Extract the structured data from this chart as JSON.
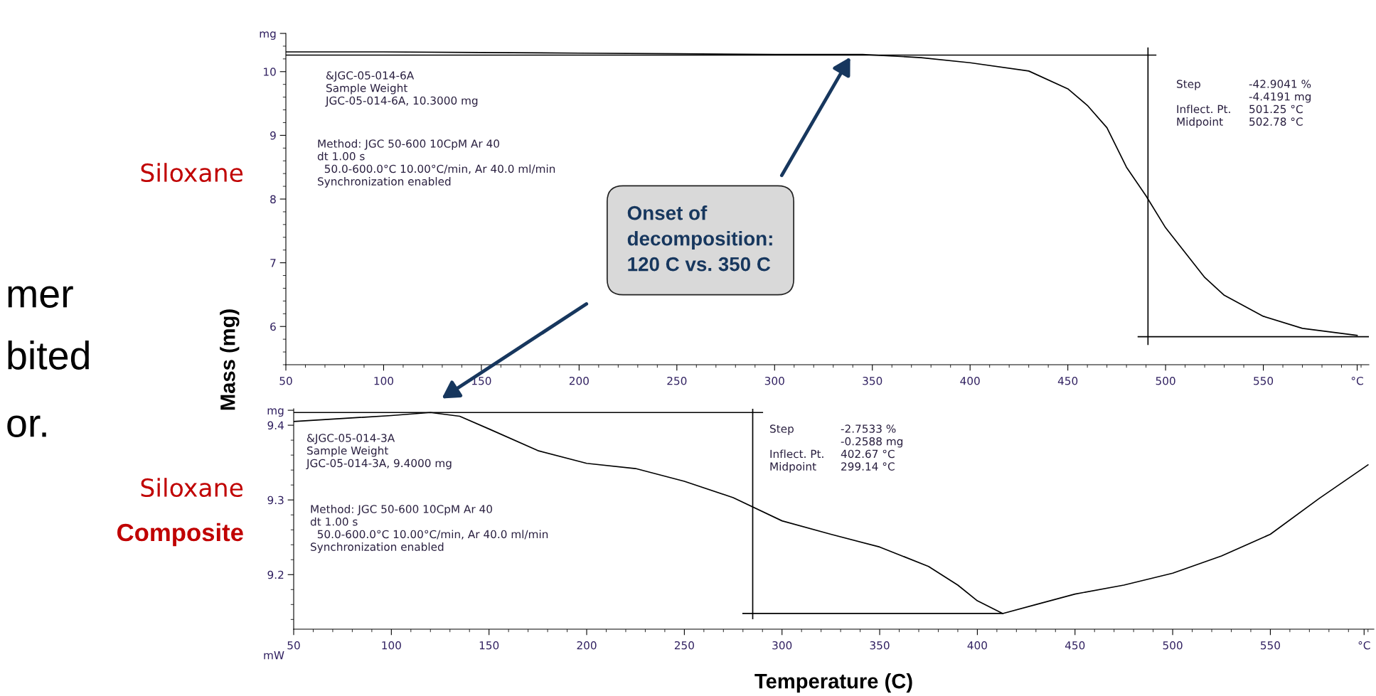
{
  "chart_data": [
    {
      "type": "line",
      "ylabel": "Mass (mg)",
      "xlim": [
        50,
        604
      ],
      "ylim": [
        5.4,
        10.6
      ],
      "xticks": [
        50,
        100,
        150,
        200,
        250,
        300,
        350,
        400,
        450,
        500,
        550,
        {
          "value": 598,
          "label": "°C"
        }
      ],
      "yticks": [
        6,
        7,
        8,
        9,
        10,
        {
          "value": 10.6,
          "label": "mg"
        }
      ],
      "series": [
        {
          "color": "#000000",
          "x": [
            50,
            100,
            150,
            200,
            250,
            300,
            345,
            375,
            400,
            430,
            450,
            460,
            470,
            480,
            490,
            500,
            510,
            520,
            530,
            550,
            570,
            598
          ],
          "values": [
            10.31,
            10.31,
            10.3,
            10.29,
            10.28,
            10.27,
            10.27,
            10.22,
            10.14,
            10.01,
            9.73,
            9.47,
            9.12,
            8.5,
            8.05,
            7.55,
            7.16,
            6.77,
            6.49,
            6.16,
            5.97,
            5.86
          ]
        },
        {
          "color": "#000000",
          "x": [
            50,
            495
          ],
          "values": [
            10.26,
            10.26
          ]
        },
        {
          "color": "#000000",
          "x": [
            491,
            491
          ],
          "values": [
            10.37,
            5.72
          ]
        },
        {
          "color": "#000000",
          "x": [
            486,
            604
          ],
          "values": [
            5.84,
            5.84
          ]
        }
      ],
      "annotations": [
        "&JGC-05-014-6A\nSample Weight\nJGC-05-014-6A, 10.3000 mg",
        "Method: JGC 50-600 10CpM Ar 40\ndt 1.00 s\n  50.0-600.0°C 10.00°C/min, Ar 40.0 ml/min\nSynchronization enabled",
        "Step\n\nInflect. Pt.\nMidpoint",
        "-42.9041 %\n-4.4191 mg\n501.25 °C\n502.78 °C",
        "Siloxane",
        "Onset of\ndecomposition:\n120 C vs. 350 C",
        "mer",
        "bited",
        "or."
      ]
    },
    {
      "type": "line",
      "xlabel": "Temperature (C)",
      "xlim": [
        50,
        603
      ],
      "ylim": [
        9.127,
        9.422
      ],
      "xticks": [
        50,
        100,
        150,
        200,
        250,
        300,
        350,
        400,
        450,
        500,
        550,
        {
          "value": 598,
          "label": "°C"
        }
      ],
      "yticks": [
        9.2,
        9.3,
        9.4,
        {
          "value": 9.42,
          "label": "mg"
        }
      ],
      "series": [
        {
          "color": "#000000",
          "x": [
            50,
            100,
            120,
            135,
            150,
            175,
            200,
            225,
            250,
            275,
            300,
            325,
            350,
            375,
            390,
            400,
            413,
            430,
            450,
            475,
            500,
            525,
            550,
            575,
            600
          ],
          "values": [
            9.405,
            9.413,
            9.417,
            9.412,
            9.395,
            9.366,
            9.349,
            9.342,
            9.325,
            9.303,
            9.272,
            9.254,
            9.237,
            9.211,
            9.186,
            9.165,
            9.148,
            9.16,
            9.174,
            9.186,
            9.202,
            9.225,
            9.254,
            9.302,
            9.347
          ]
        },
        {
          "color": "#000000",
          "x": [
            50,
            290
          ],
          "values": [
            9.417,
            9.417
          ]
        },
        {
          "color": "#000000",
          "x": [
            285,
            285
          ],
          "values": [
            9.422,
            9.141
          ]
        },
        {
          "color": "#000000",
          "x": [
            280,
            413
          ],
          "values": [
            9.148,
            9.148
          ]
        }
      ],
      "annotations": [
        "&JGC-05-014-3A\nSample Weight\nJGC-05-014-3A, 9.4000 mg",
        "Method: JGC 50-600 10CpM Ar 40\ndt 1.00 s\n  50.0-600.0°C 10.00°C/min, Ar 40.0 ml/min\nSynchronization enabled",
        "Step\n\nInflect. Pt.\nMidpoint",
        "-2.7533 %\n-0.2588 mg\n402.67 °C\n299.14 °C",
        "Siloxane",
        "Composite",
        "mW"
      ]
    }
  ]
}
